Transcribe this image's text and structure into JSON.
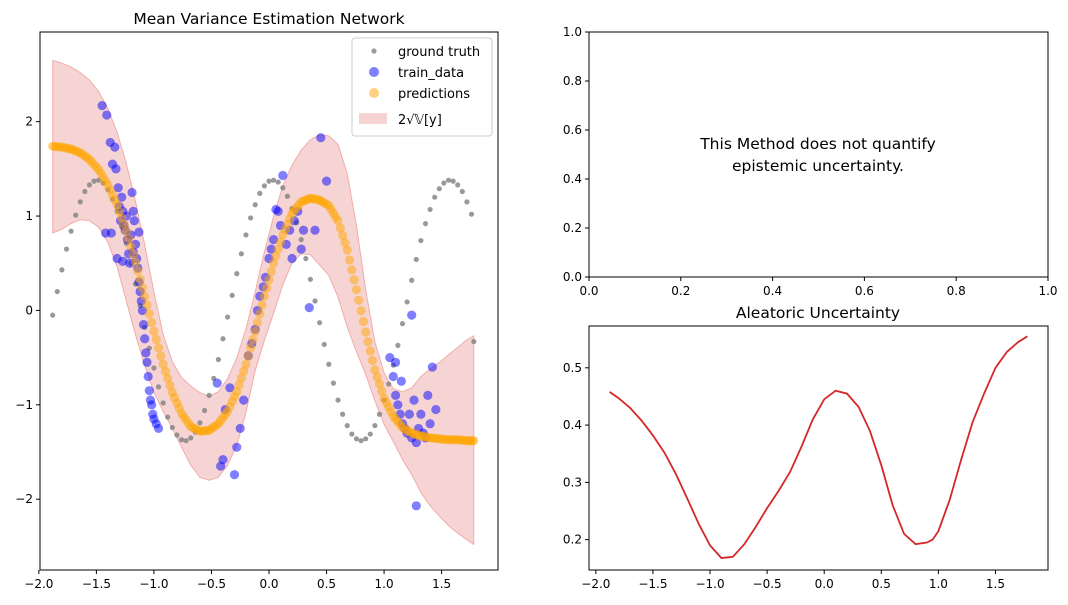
{
  "chart_data": [
    {
      "type": "scatter",
      "title": "Mean Variance Estimation Network",
      "xlabel": "",
      "ylabel": "",
      "xlim": [
        -1.99,
        1.99
      ],
      "ylim": [
        -2.75,
        2.95
      ],
      "xticks": [
        -2.0,
        -1.5,
        -1.0,
        -0.5,
        0.0,
        0.5,
        1.0,
        1.5
      ],
      "xtick_labels": [
        "−2.0",
        "−1.5",
        "−1.0",
        "−0.5",
        "0.0",
        "0.5",
        "1.0",
        "1.5"
      ],
      "yticks": [
        -2,
        -1,
        0,
        1,
        2
      ],
      "ytick_labels": [
        "−2",
        "−1",
        "0",
        "1",
        "2"
      ],
      "legend_position": "top-right",
      "grid": false,
      "legend": [
        "ground truth",
        "train_data",
        "predictions",
        "2√𝕍[y]"
      ],
      "colors": {
        "ground_truth": "#808080",
        "train_data": "#0000ff",
        "predictions": "#ffa500",
        "band": "#d62728"
      },
      "series": [
        {
          "name": "ground truth",
          "kind": "scatter",
          "x": [
            -1.88,
            -1.84,
            -1.8,
            -1.76,
            -1.72,
            -1.68,
            -1.64,
            -1.6,
            -1.56,
            -1.52,
            -1.48,
            -1.44,
            -1.4,
            -1.36,
            -1.32,
            -1.28,
            -1.24,
            -1.2,
            -1.16,
            -1.12,
            -1.08,
            -1.04,
            -1.0,
            -0.96,
            -0.92,
            -0.88,
            -0.84,
            -0.8,
            -0.76,
            -0.72,
            -0.68,
            -0.64,
            -0.6,
            -0.56,
            -0.52,
            -0.48,
            -0.44,
            -0.4,
            -0.36,
            -0.32,
            -0.28,
            -0.24,
            -0.2,
            -0.16,
            -0.12,
            -0.08,
            -0.04,
            0.0,
            0.04,
            0.08,
            0.12,
            0.16,
            0.2,
            0.24,
            0.28,
            0.32,
            0.36,
            0.4,
            0.44,
            0.48,
            0.52,
            0.56,
            0.6,
            0.64,
            0.68,
            0.72,
            0.76,
            0.8,
            0.84,
            0.88,
            0.92,
            0.96,
            1.0,
            1.04,
            1.08,
            1.12,
            1.16,
            1.2,
            1.24,
            1.28,
            1.32,
            1.36,
            1.4,
            1.44,
            1.48,
            1.52,
            1.56,
            1.6,
            1.64,
            1.68,
            1.72,
            1.76,
            1.78
          ],
          "y": [
            -0.05,
            0.2,
            0.43,
            0.65,
            0.84,
            1.01,
            1.15,
            1.26,
            1.33,
            1.37,
            1.38,
            1.35,
            1.28,
            1.18,
            1.05,
            0.89,
            0.71,
            0.5,
            0.28,
            0.05,
            -0.18,
            -0.4,
            -0.61,
            -0.81,
            -0.98,
            -1.13,
            -1.24,
            -1.32,
            -1.37,
            -1.38,
            -1.35,
            -1.29,
            -1.19,
            -1.06,
            -0.9,
            -0.72,
            -0.52,
            -0.3,
            -0.07,
            0.16,
            0.39,
            0.6,
            0.8,
            0.98,
            1.12,
            1.24,
            1.32,
            1.37,
            1.38,
            1.36,
            1.3,
            1.21,
            1.08,
            0.93,
            0.75,
            0.55,
            0.33,
            0.1,
            -0.13,
            -0.36,
            -0.57,
            -0.77,
            -0.95,
            -1.1,
            -1.22,
            -1.31,
            -1.36,
            -1.38,
            -1.36,
            -1.31,
            -1.22,
            -1.1,
            -0.95,
            -0.78,
            -0.58,
            -0.37,
            -0.14,
            0.09,
            0.32,
            0.54,
            0.74,
            0.92,
            1.07,
            1.2,
            1.29,
            1.35,
            1.38,
            1.37,
            1.33,
            1.26,
            1.15,
            1.02,
            -0.33
          ]
        },
        {
          "name": "train_data",
          "kind": "scatter",
          "x": [
            -1.45,
            -1.41,
            -1.38,
            -1.36,
            -1.34,
            -1.33,
            -1.31,
            -1.3,
            -1.29,
            -1.28,
            -1.27,
            -1.26,
            -1.25,
            -1.24,
            -1.23,
            -1.22,
            -1.21,
            -1.2,
            -1.19,
            -1.18,
            -1.17,
            -1.16,
            -1.15,
            -1.14,
            -1.13,
            -1.12,
            -1.11,
            -1.1,
            -1.09,
            -1.08,
            -1.07,
            -1.06,
            -1.05,
            -1.04,
            -1.03,
            -1.02,
            -1.01,
            -1.0,
            -0.98,
            -0.96,
            -1.42,
            -1.37,
            -1.32,
            -1.27,
            -1.18,
            -1.13,
            -0.45,
            -0.42,
            -0.4,
            -0.38,
            -0.34,
            -0.3,
            -0.28,
            -0.25,
            -0.22,
            -0.18,
            -0.15,
            -0.12,
            -0.1,
            -0.08,
            -0.05,
            -0.03,
            0.0,
            0.02,
            0.04,
            0.06,
            0.08,
            0.1,
            0.12,
            0.15,
            0.18,
            0.2,
            0.22,
            0.25,
            0.28,
            0.3,
            0.35,
            0.4,
            0.45,
            0.5,
            1.05,
            1.08,
            1.1,
            1.12,
            1.14,
            1.16,
            1.18,
            1.2,
            1.22,
            1.24,
            1.26,
            1.28,
            1.3,
            1.32,
            1.34,
            1.36,
            1.38,
            1.4,
            1.42,
            1.45,
            1.24,
            1.28,
            1.1,
            1.15
          ],
          "y": [
            2.17,
            2.07,
            1.78,
            1.55,
            1.73,
            1.5,
            1.3,
            1.1,
            0.95,
            1.2,
            1.05,
            0.9,
            0.85,
            1.0,
            0.75,
            0.6,
            0.5,
            0.8,
            1.25,
            1.05,
            0.95,
            0.7,
            0.55,
            0.45,
            0.3,
            0.2,
            0.1,
            0.0,
            -0.15,
            -0.3,
            -0.45,
            -0.55,
            -0.7,
            -0.85,
            -0.95,
            -1.0,
            -1.1,
            -1.15,
            -1.2,
            -1.25,
            0.82,
            0.82,
            0.55,
            0.52,
            0.62,
            0.83,
            -0.77,
            -1.65,
            -1.58,
            -1.05,
            -0.82,
            -1.74,
            -1.45,
            -1.25,
            -0.95,
            -0.48,
            -0.35,
            -0.2,
            0.0,
            0.15,
            0.25,
            0.35,
            0.55,
            0.65,
            0.75,
            1.07,
            1.05,
            0.9,
            1.43,
            0.7,
            0.85,
            0.55,
            0.95,
            1.05,
            0.65,
            0.85,
            0.03,
            0.85,
            1.83,
            1.37,
            -0.5,
            -0.7,
            -0.9,
            -1.0,
            -1.1,
            -1.2,
            -1.25,
            -1.3,
            -1.1,
            -1.35,
            -0.95,
            -1.4,
            -1.25,
            -1.1,
            -1.3,
            -1.35,
            -0.9,
            -1.2,
            -0.6,
            -1.05,
            -0.05,
            -2.07,
            -0.55,
            -0.75
          ]
        },
        {
          "name": "predictions",
          "kind": "scatter",
          "x": [
            -1.88,
            -1.8,
            -1.72,
            -1.64,
            -1.56,
            -1.48,
            -1.4,
            -1.32,
            -1.24,
            -1.16,
            -1.08,
            -1.0,
            -0.92,
            -0.84,
            -0.76,
            -0.68,
            -0.6,
            -0.52,
            -0.44,
            -0.36,
            -0.28,
            -0.2,
            -0.12,
            -0.04,
            0.04,
            0.12,
            0.2,
            0.28,
            0.36,
            0.44,
            0.52,
            0.6,
            0.68,
            0.76,
            0.84,
            0.92,
            1.0,
            1.08,
            1.16,
            1.24,
            1.32,
            1.4,
            1.48,
            1.56,
            1.64,
            1.72,
            1.78
          ],
          "y": [
            1.74,
            1.73,
            1.71,
            1.67,
            1.6,
            1.49,
            1.33,
            1.12,
            0.84,
            0.51,
            0.15,
            -0.22,
            -0.57,
            -0.87,
            -1.09,
            -1.23,
            -1.28,
            -1.27,
            -1.2,
            -1.07,
            -0.86,
            -0.57,
            -0.22,
            0.15,
            0.5,
            0.8,
            1.03,
            1.15,
            1.19,
            1.17,
            1.11,
            0.95,
            0.64,
            0.22,
            -0.23,
            -0.63,
            -0.93,
            -1.12,
            -1.24,
            -1.3,
            -1.33,
            -1.35,
            -1.36,
            -1.37,
            -1.37,
            -1.38,
            -1.38
          ]
        },
        {
          "name": "2√𝕍[y]",
          "kind": "band",
          "x": [
            -1.88,
            -1.8,
            -1.72,
            -1.64,
            -1.56,
            -1.48,
            -1.4,
            -1.32,
            -1.24,
            -1.16,
            -1.08,
            -1.0,
            -0.92,
            -0.84,
            -0.76,
            -0.68,
            -0.6,
            -0.52,
            -0.44,
            -0.36,
            -0.28,
            -0.2,
            -0.12,
            -0.04,
            0.04,
            0.12,
            0.2,
            0.28,
            0.36,
            0.44,
            0.52,
            0.6,
            0.68,
            0.76,
            0.84,
            0.92,
            1.0,
            1.08,
            1.16,
            1.24,
            1.32,
            1.4,
            1.48,
            1.56,
            1.64,
            1.72,
            1.78
          ],
          "upper": [
            2.65,
            2.62,
            2.58,
            2.52,
            2.44,
            2.32,
            2.14,
            1.89,
            1.56,
            1.16,
            0.7,
            0.2,
            -0.25,
            -0.54,
            -0.71,
            -0.8,
            -0.87,
            -0.91,
            -0.86,
            -0.72,
            -0.5,
            -0.19,
            0.2,
            0.62,
            1.0,
            1.32,
            1.54,
            1.7,
            1.81,
            1.86,
            1.85,
            1.76,
            1.45,
            0.9,
            0.22,
            -0.33,
            -0.66,
            -0.83,
            -0.86,
            -0.82,
            -0.7,
            -0.62,
            -0.55,
            -0.47,
            -0.39,
            -0.31,
            -0.27
          ],
          "lower": [
            0.82,
            0.86,
            0.92,
            0.96,
            0.95,
            0.88,
            0.72,
            0.46,
            0.1,
            -0.26,
            -0.58,
            -0.87,
            -1.07,
            -1.25,
            -1.45,
            -1.64,
            -1.77,
            -1.8,
            -1.77,
            -1.64,
            -1.43,
            -1.08,
            -0.64,
            -0.32,
            -0.03,
            0.27,
            0.5,
            0.6,
            0.59,
            0.48,
            0.37,
            0.14,
            -0.18,
            -0.44,
            -0.68,
            -0.96,
            -1.21,
            -1.39,
            -1.58,
            -1.74,
            -1.93,
            -2.07,
            -2.18,
            -2.28,
            -2.36,
            -2.43,
            -2.48
          ]
        }
      ]
    },
    {
      "type": "line",
      "title": "",
      "annotation": "This Method does not quantify\nepistemic uncertainty.",
      "xlim": [
        0.0,
        1.0
      ],
      "ylim": [
        0.0,
        1.0
      ],
      "xticks": [
        0.0,
        0.2,
        0.4,
        0.6,
        0.8,
        1.0
      ],
      "xtick_labels": [
        "0.0",
        "0.2",
        "0.4",
        "0.6",
        "0.8",
        "1.0"
      ],
      "yticks": [
        0.0,
        0.2,
        0.4,
        0.6,
        0.8,
        1.0
      ],
      "ytick_labels": [
        "0.0",
        "0.2",
        "0.4",
        "0.6",
        "0.8",
        "1.0"
      ],
      "series": []
    },
    {
      "type": "line",
      "title": "Aleatoric Uncertainty",
      "xlim": [
        -2.06,
        1.96
      ],
      "ylim": [
        0.147,
        0.573
      ],
      "xticks": [
        -2.0,
        -1.5,
        -1.0,
        -0.5,
        0.0,
        0.5,
        1.0,
        1.5
      ],
      "xtick_labels": [
        "−2.0",
        "−1.5",
        "−1.0",
        "−0.5",
        "0.0",
        "0.5",
        "1.0",
        "1.5"
      ],
      "yticks": [
        0.2,
        0.3,
        0.4,
        0.5
      ],
      "ytick_labels": [
        "0.2",
        "0.3",
        "0.4",
        "0.5"
      ],
      "color": "#d62728",
      "series": [
        {
          "x": [
            -1.88,
            -1.8,
            -1.7,
            -1.6,
            -1.5,
            -1.4,
            -1.3,
            -1.2,
            -1.1,
            -1.0,
            -0.9,
            -0.8,
            -0.7,
            -0.6,
            -0.5,
            -0.4,
            -0.3,
            -0.2,
            -0.1,
            0.0,
            0.1,
            0.2,
            0.3,
            0.4,
            0.5,
            0.6,
            0.7,
            0.8,
            0.9,
            0.95,
            1.0,
            1.1,
            1.2,
            1.3,
            1.4,
            1.5,
            1.6,
            1.7,
            1.78
          ],
          "y": [
            0.458,
            0.447,
            0.43,
            0.408,
            0.382,
            0.352,
            0.315,
            0.272,
            0.228,
            0.19,
            0.168,
            0.17,
            0.192,
            0.222,
            0.255,
            0.285,
            0.318,
            0.362,
            0.41,
            0.445,
            0.46,
            0.455,
            0.432,
            0.39,
            0.33,
            0.26,
            0.21,
            0.192,
            0.195,
            0.2,
            0.215,
            0.27,
            0.34,
            0.405,
            0.455,
            0.5,
            0.528,
            0.545,
            0.555
          ]
        }
      ]
    }
  ]
}
